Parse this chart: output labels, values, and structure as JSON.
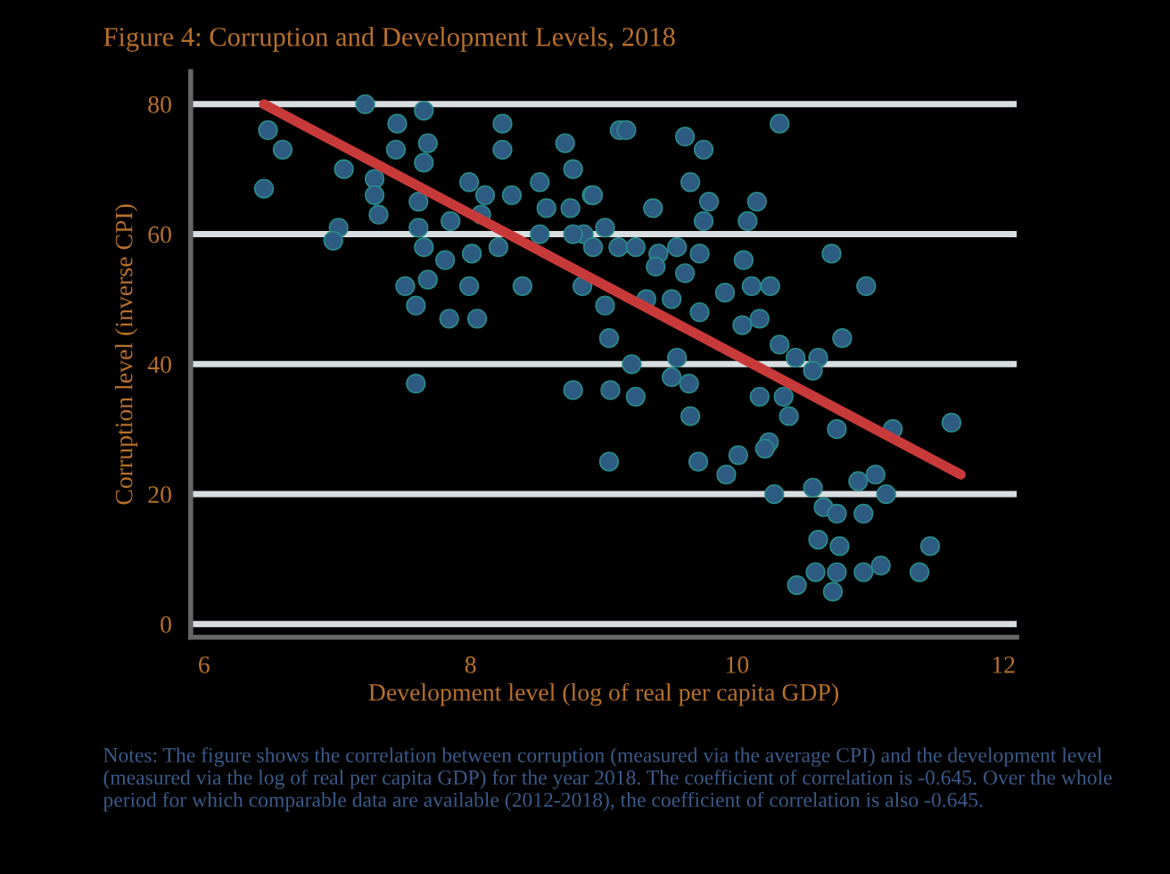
{
  "chart_data": {
    "type": "scatter",
    "title": "Figure 4: Corruption and Development Levels, 2018",
    "xlabel": "Development level (log of real per capita GDP)",
    "ylabel": "Corruption level (inverse CPI)",
    "annotations": [
      "Notes: The figure shows the correlation between corruption (measured via the average CPI) and the development level (measured via the log of real per capita GDP) for the year 2018. The coefficient of correlation is -0.645. Over the whole period for which comparable data are available (2012-2018), the coefficient of correlation is also -0.645."
    ],
    "xlim": [
      5.9,
      12.1
    ],
    "ylim": [
      -2,
      85
    ],
    "xticks": [
      6,
      8,
      10,
      12
    ],
    "yticks": [
      0,
      20,
      40,
      60,
      80
    ],
    "grid": "y",
    "legend": false,
    "series": [
      {
        "color": "#2d5b82",
        "marker": "circle",
        "x": [
          6.48,
          6.59,
          6.45,
          7.21,
          7.45,
          7.65,
          7.68,
          7.44,
          7.65,
          7.05,
          7.28,
          7.28,
          7.31,
          7.61,
          7.61,
          7.01,
          6.97,
          7.65,
          7.85,
          7.99,
          8.11,
          8.31,
          8.24,
          8.24,
          8.71,
          8.77,
          8.52,
          8.57,
          8.75,
          8.91,
          8.08,
          8.21,
          8.52,
          8.85,
          9.01,
          7.81,
          8.01,
          7.51,
          7.68,
          7.99,
          8.39,
          7.59,
          7.84,
          8.05,
          8.84,
          9.01,
          9.04,
          7.59,
          8.77,
          9.05,
          9.04,
          9.12,
          10.32,
          9.17,
          9.61,
          9.75,
          9.65,
          9.79,
          10.15,
          10.08,
          9.75,
          9.37,
          8.92,
          8.77,
          8.92,
          9.11,
          9.24,
          9.41,
          9.55,
          9.72,
          9.39,
          9.61,
          10.05,
          10.71,
          10.97,
          9.32,
          9.51,
          9.72,
          9.91,
          10.11,
          10.25,
          10.04,
          10.17,
          10.32,
          10.44,
          10.61,
          10.57,
          10.79,
          9.21,
          9.55,
          9.24,
          9.51,
          9.64,
          9.65,
          10.17,
          10.35,
          10.39,
          10.75,
          11.17,
          11.61,
          10.24,
          10.21,
          10.01,
          9.71,
          9.92,
          10.28,
          10.57,
          10.91,
          11.04,
          11.12,
          10.65,
          10.75,
          10.95,
          10.61,
          10.77,
          11.45,
          10.59,
          10.75,
          10.95,
          11.08,
          11.37,
          10.45,
          10.72
        ],
        "values": [
          76,
          73,
          67,
          80,
          77,
          79,
          74,
          73,
          71,
          70,
          68.5,
          66,
          63,
          65,
          61,
          61,
          59,
          58,
          62,
          68,
          66,
          66,
          77,
          73,
          74,
          70,
          68,
          64,
          64,
          66,
          63,
          58,
          60,
          60,
          61,
          56,
          57,
          52,
          53,
          52,
          52,
          49,
          47,
          47,
          52,
          49,
          44,
          37,
          36,
          36,
          25,
          76,
          77,
          76,
          75,
          73,
          68,
          65,
          65,
          62,
          62,
          64,
          66,
          60,
          58,
          58,
          58,
          57,
          58,
          57,
          55,
          54,
          56,
          57,
          52,
          50,
          50,
          48,
          51,
          52,
          52,
          46,
          47,
          43,
          41,
          41,
          39,
          44,
          40,
          41,
          35,
          38,
          37,
          32,
          35,
          35,
          32,
          30,
          30,
          31,
          28,
          27,
          26,
          25,
          23,
          20,
          21,
          22,
          23,
          20,
          18,
          17,
          17,
          13,
          12,
          12,
          8,
          8,
          8,
          9,
          8,
          6,
          5
        ]
      },
      {
        "type": "line",
        "color": "#c83a3a",
        "x": [
          6.45,
          11.68
        ],
        "values": [
          80,
          23
        ]
      }
    ]
  }
}
